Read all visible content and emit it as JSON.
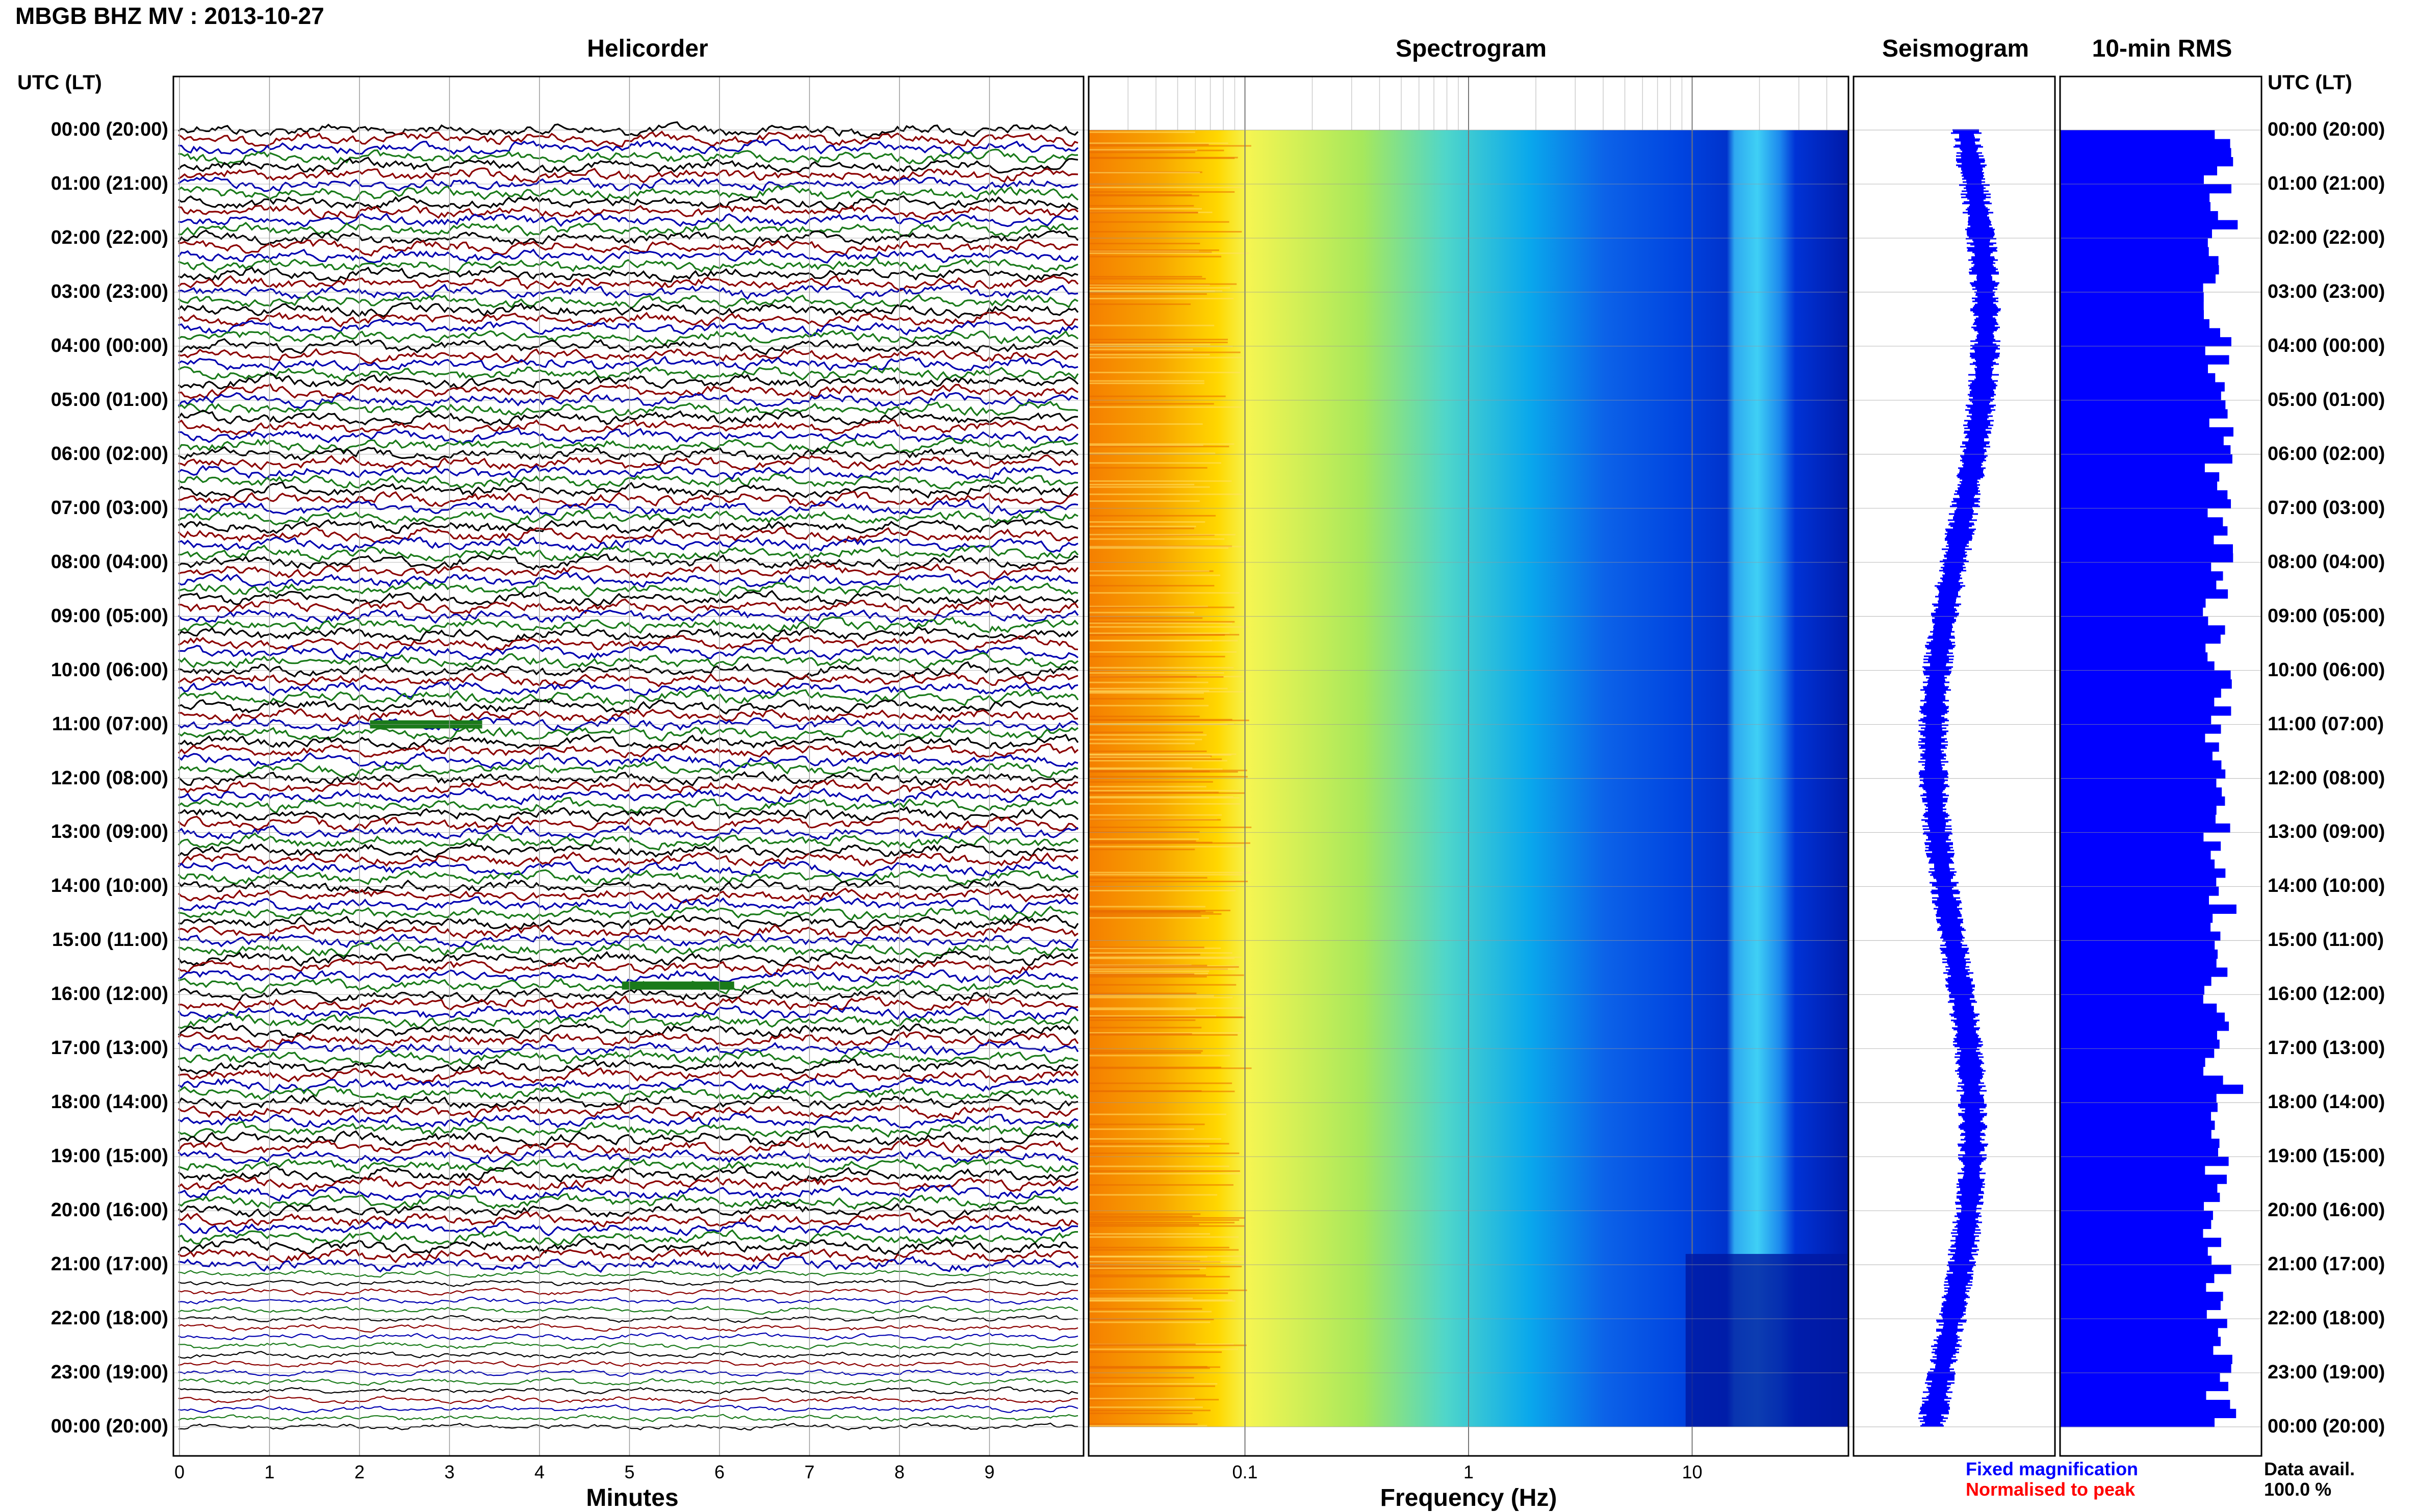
{
  "title": "MBGB BHZ MV : 2013-10-27",
  "panels": {
    "helicorder": "Helicorder",
    "spectrogram": "Spectrogram",
    "seismogram": "Seismogram",
    "rms": "10-min RMS"
  },
  "axis_headers": {
    "left": "UTC (LT)",
    "right": "UTC (LT)"
  },
  "time_labels": [
    "00:00 (20:00)",
    "01:00 (21:00)",
    "02:00 (22:00)",
    "03:00 (23:00)",
    "04:00 (00:00)",
    "05:00 (01:00)",
    "06:00 (02:00)",
    "07:00 (03:00)",
    "08:00 (04:00)",
    "09:00 (05:00)",
    "10:00 (06:00)",
    "11:00 (07:00)",
    "12:00 (08:00)",
    "13:00 (09:00)",
    "14:00 (10:00)",
    "15:00 (11:00)",
    "16:00 (12:00)",
    "17:00 (13:00)",
    "18:00 (14:00)",
    "19:00 (15:00)",
    "20:00 (16:00)",
    "21:00 (17:00)",
    "22:00 (18:00)",
    "23:00 (19:00)",
    "00:00 (20:00)"
  ],
  "x_axes": {
    "helicorder": {
      "label": "Minutes",
      "ticks": [
        "0",
        "1",
        "2",
        "3",
        "4",
        "5",
        "6",
        "7",
        "8",
        "9"
      ]
    },
    "spectrogram": {
      "label": "Frequency (Hz)",
      "ticks": [
        "0.1",
        "1",
        "10"
      ],
      "scale": "log"
    }
  },
  "legend": {
    "fixed": "Fixed magnification",
    "normalised": "Normalised to peak",
    "fixed_color": "#0000ff",
    "normalised_color": "#ff0000"
  },
  "data_avail": {
    "label": "Data avail.",
    "value": "100.0 %"
  },
  "colors": {
    "trace_cycle": [
      "#000000",
      "#8b0000",
      "#0000b0",
      "#1a7a1a"
    ],
    "fill": "#0000ff",
    "spectrogram_scale": [
      "#f57f00",
      "#ffd700",
      "#f5f552",
      "#a6e85c",
      "#4fd6ca",
      "#0aa8ec",
      "#0044e0",
      "#00008f"
    ]
  },
  "chart_data": [
    {
      "type": "line",
      "title": "Helicorder",
      "xlabel": "Minutes",
      "xlim": [
        0,
        10
      ],
      "rows_per_hour": 6,
      "hours": 24,
      "events": [
        {
          "time_utc": "11:00",
          "minute": 2.4
        },
        {
          "time_utc": "15:50",
          "minute": 5.2
        }
      ]
    },
    {
      "type": "heatmap",
      "title": "Spectrogram",
      "xlabel": "Frequency (Hz)",
      "x_scale": "log",
      "xlim": [
        0.02,
        50
      ],
      "x_ticks": [
        0.1,
        1,
        10
      ],
      "band_hz": [
        15,
        25
      ]
    },
    {
      "type": "line",
      "title": "Seismogram"
    },
    {
      "type": "bar",
      "title": "10-min RMS",
      "orientation": "horizontal",
      "bins": 144
    }
  ]
}
